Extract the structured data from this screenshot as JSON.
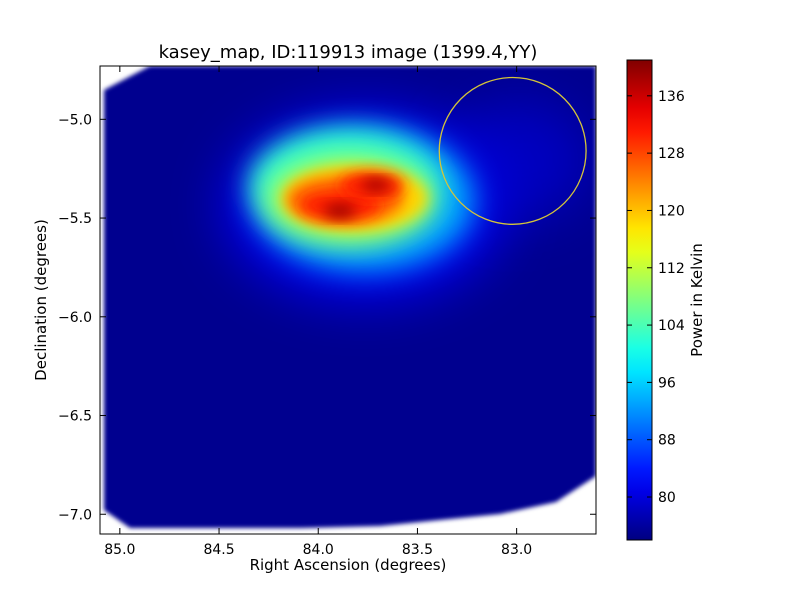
{
  "chart_data": {
    "type": "heatmap",
    "title": "kasey_map, ID:119913 image (1399.4,YY)",
    "xlabel": "Right Ascension (degrees)",
    "ylabel": "Declination (degrees)",
    "xlim": [
      85.1,
      82.6
    ],
    "ylim": [
      -7.1,
      -4.73
    ],
    "xticks": [
      85.0,
      84.5,
      84.0,
      83.5,
      83.0
    ],
    "xtick_labels": [
      "85.0",
      "84.5",
      "84.0",
      "83.5",
      "83.0"
    ],
    "yticks": [
      -5.0,
      -5.5,
      -6.0,
      -6.5,
      -7.0
    ],
    "ytick_labels": [
      "−5.0",
      "−5.5",
      "−6.0",
      "−6.5",
      "−7.0"
    ],
    "colorbar": {
      "label": "Power in Kelvin",
      "colormap": "jet",
      "range": [
        74,
        141
      ],
      "ticks": [
        80,
        88,
        96,
        104,
        112,
        120,
        128,
        136
      ],
      "tick_labels": [
        "80",
        "88",
        "96",
        "104",
        "112",
        "120",
        "128",
        "136"
      ]
    },
    "background_level": 77,
    "sources": [
      {
        "ra": 83.88,
        "dec": -5.45,
        "peak": 140
      },
      {
        "ra": 83.72,
        "dec": -5.32,
        "peak": 139
      }
    ],
    "circle_marker": {
      "ra": 83.02,
      "dec": -5.16,
      "radius_deg": 0.37,
      "color": "#d4c43a"
    },
    "grid": false
  }
}
